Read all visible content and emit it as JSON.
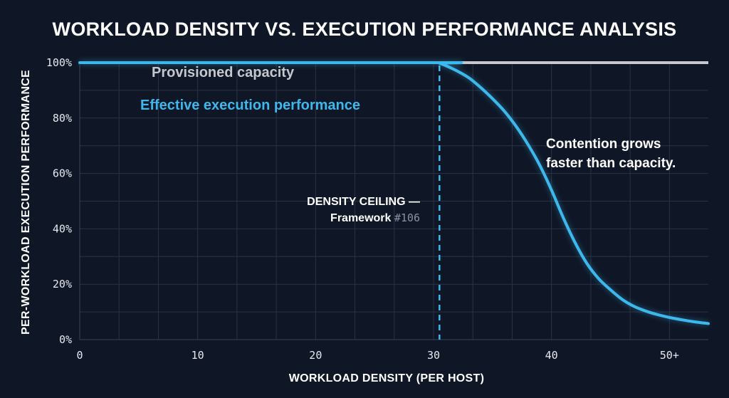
{
  "chart_data": {
    "type": "line",
    "title": "WORKLOAD DENSITY VS. EXECUTION PERFORMANCE ANALYSIS",
    "xlabel": "WORKLOAD DENSITY (PER HOST)",
    "ylabel": "PER-WORKLOAD EXECUTION PERFORMANCE",
    "xlim": [
      0,
      53.3
    ],
    "ylim": [
      0,
      100
    ],
    "x_ticks": [
      0,
      10,
      20,
      30,
      40,
      50
    ],
    "x_tick_labels": [
      "0",
      "10",
      "20",
      "30",
      "40",
      "50+"
    ],
    "y_ticks": [
      0,
      20,
      40,
      60,
      80,
      100
    ],
    "y_tick_labels": [
      "0%",
      "20%",
      "40%",
      "60%",
      "80%",
      "100%"
    ],
    "grid": true,
    "series": [
      {
        "name": "Provisioned capacity",
        "color": "#c4c7cd",
        "x": [
          0,
          53.3
        ],
        "y": [
          100,
          100
        ]
      },
      {
        "name": "Effective execution performance",
        "color": "#3db8ec",
        "x": [
          0,
          30,
          30.5,
          31,
          32,
          33,
          34,
          35,
          36,
          37,
          38,
          39,
          40,
          41,
          42,
          43,
          44,
          45,
          46,
          47,
          48,
          49,
          50,
          51,
          52,
          53.3
        ],
        "y": [
          100,
          100,
          99.8,
          99,
          97,
          94.5,
          91,
          87,
          82.5,
          77,
          70.5,
          63,
          54,
          44,
          35,
          27.5,
          22,
          18,
          14.5,
          12,
          10.3,
          9,
          8,
          7.2,
          6.5,
          5.8
        ]
      }
    ],
    "annotations": {
      "ceiling_x": 30.5,
      "ceiling_line1": "DENSITY CEILING —",
      "ceiling_line2": "Framework",
      "ceiling_number": "#106",
      "contention_line1": "Contention grows",
      "contention_line2": "faster than capacity."
    }
  }
}
